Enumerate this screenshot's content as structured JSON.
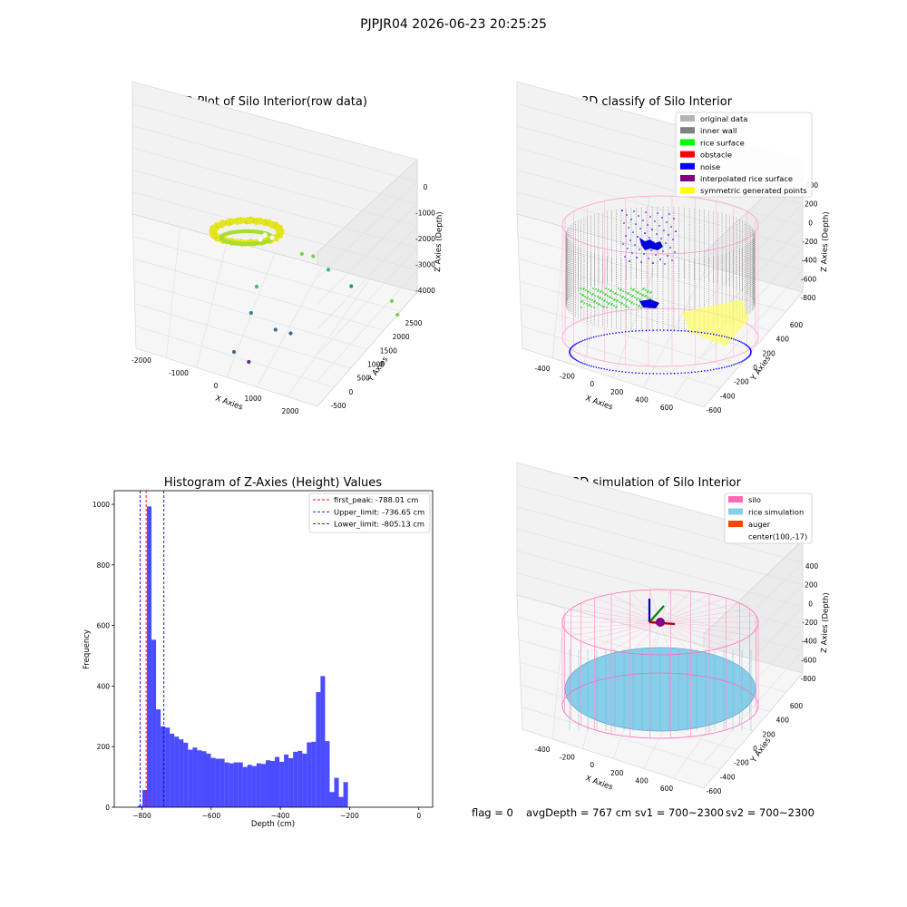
{
  "figure": {
    "suptitle": "PJPJR04 2026-06-23 20:25:25",
    "footer": {
      "flag": "flag = 0",
      "avg_depth": "avgDepth = 767 cm",
      "sv1": "sv1 = 700~2300",
      "sv2": "sv2 = 700~2300"
    }
  },
  "chart_data": [
    {
      "type": "scatter3d",
      "title": "3D Plot of Silo Interior(row data)",
      "xlabel": "X Axies",
      "ylabel": "Y Axies",
      "zlabel": "Z Axies (Depth)",
      "xticks": [
        "-2000",
        "-1000",
        "0",
        "1000",
        "2000"
      ],
      "yticks": [
        "-500",
        "0",
        "500",
        "1000",
        "1500",
        "2000",
        "2500"
      ],
      "zticks": [
        "0",
        "-1000",
        "-2000",
        "-3000",
        "-4000"
      ],
      "outliers": [
        {
          "x": 1800,
          "y": 600,
          "z": -1800
        },
        {
          "x": 1850,
          "y": 650,
          "z": -2100
        },
        {
          "x": 350,
          "y": 1200,
          "z": -2300
        },
        {
          "x": 450,
          "y": 1300,
          "z": -2400
        },
        {
          "x": 600,
          "y": 1400,
          "z": -2700
        },
        {
          "x": 850,
          "y": 1500,
          "z": -3000
        },
        {
          "x": 0,
          "y": 700,
          "z": -2600
        },
        {
          "x": -50,
          "y": 650,
          "z": -3100
        },
        {
          "x": 150,
          "y": 900,
          "z": -3600
        },
        {
          "x": 300,
          "y": 1000,
          "z": -3700
        },
        {
          "x": -200,
          "y": 500,
          "z": -3800
        },
        {
          "x": -150,
          "y": 800,
          "z": -4300
        }
      ]
    },
    {
      "type": "scatter3d",
      "title": "3D classify of Silo Interior",
      "xlabel": "X Axies",
      "ylabel": "Y Axies",
      "zlabel": "Z Axies (Depth)",
      "xticks": [
        "-400",
        "-200",
        "0",
        "200",
        "400",
        "600"
      ],
      "yticks": [
        "-600",
        "-400",
        "-200",
        "0",
        "200",
        "400",
        "600"
      ],
      "zticks": [
        "400",
        "200",
        "0",
        "-200",
        "-400",
        "-600",
        "-800"
      ],
      "legend": [
        {
          "label": "original data",
          "color": "#b4b4b4"
        },
        {
          "label": "inner wall",
          "color": "#808080"
        },
        {
          "label": "rice surface",
          "color": "#00ff00"
        },
        {
          "label": "obstacle",
          "color": "#ff0000"
        },
        {
          "label": "noise",
          "color": "#0000ff"
        },
        {
          "label": "interpolated rice surface",
          "color": "#800080"
        },
        {
          "label": "symmetric generated points",
          "color": "#ffff00"
        }
      ]
    },
    {
      "type": "bar",
      "title": "Histogram of Z-Axies (Height) Values",
      "xlabel": "Depth (cm)",
      "ylabel": "Frequency",
      "xlim": [
        -880,
        40
      ],
      "ylim": [
        0,
        1045
      ],
      "xticks": [
        -800,
        -600,
        -400,
        -200,
        0
      ],
      "yticks": [
        0,
        200,
        400,
        600,
        800,
        1000
      ],
      "bar_color": "#0000ff",
      "bins": {
        "start": -812,
        "width": 13.2,
        "values": [
          5,
          57,
          993,
          553,
          323,
          267,
          263,
          243,
          233,
          224,
          213,
          190,
          197,
          188,
          185,
          177,
          163,
          160,
          160,
          148,
          145,
          148,
          148,
          133,
          140,
          136,
          145,
          143,
          155,
          153,
          166,
          150,
          174,
          162,
          183,
          186,
          177,
          214,
          216,
          380,
          433,
          218,
          50,
          97,
          34,
          83
        ]
      },
      "vlines": [
        {
          "label": "first_peak: -788.01 cm",
          "x": -788.01,
          "color": "#ff0000"
        },
        {
          "label": "Upper_limit: -736.65 cm",
          "x": -736.65,
          "color": "#0000ff"
        },
        {
          "label": "Lower_limit: -805.13 cm",
          "x": -805.13,
          "color": "#0000ff"
        }
      ]
    },
    {
      "type": "surface3d",
      "title": "3D simulation of Silo Interior",
      "xlabel": "X Axies",
      "ylabel": "Y Axies",
      "zlabel": "Z Axies (Depth)",
      "xticks": [
        "-400",
        "-200",
        "0",
        "200",
        "400",
        "600"
      ],
      "yticks": [
        "-600",
        "-400",
        "-200",
        "0",
        "200",
        "400",
        "600"
      ],
      "zticks": [
        "400",
        "200",
        "0",
        "-200",
        "-400",
        "-600",
        "-800"
      ],
      "legend": [
        {
          "label": "silo",
          "color": "#ff69b4"
        },
        {
          "label": "rice simulation",
          "color": "#87ceeb"
        },
        {
          "label": "auger",
          "color": "#ff4500"
        },
        {
          "label": "center(100,-17)",
          "color": "none"
        }
      ]
    }
  ]
}
